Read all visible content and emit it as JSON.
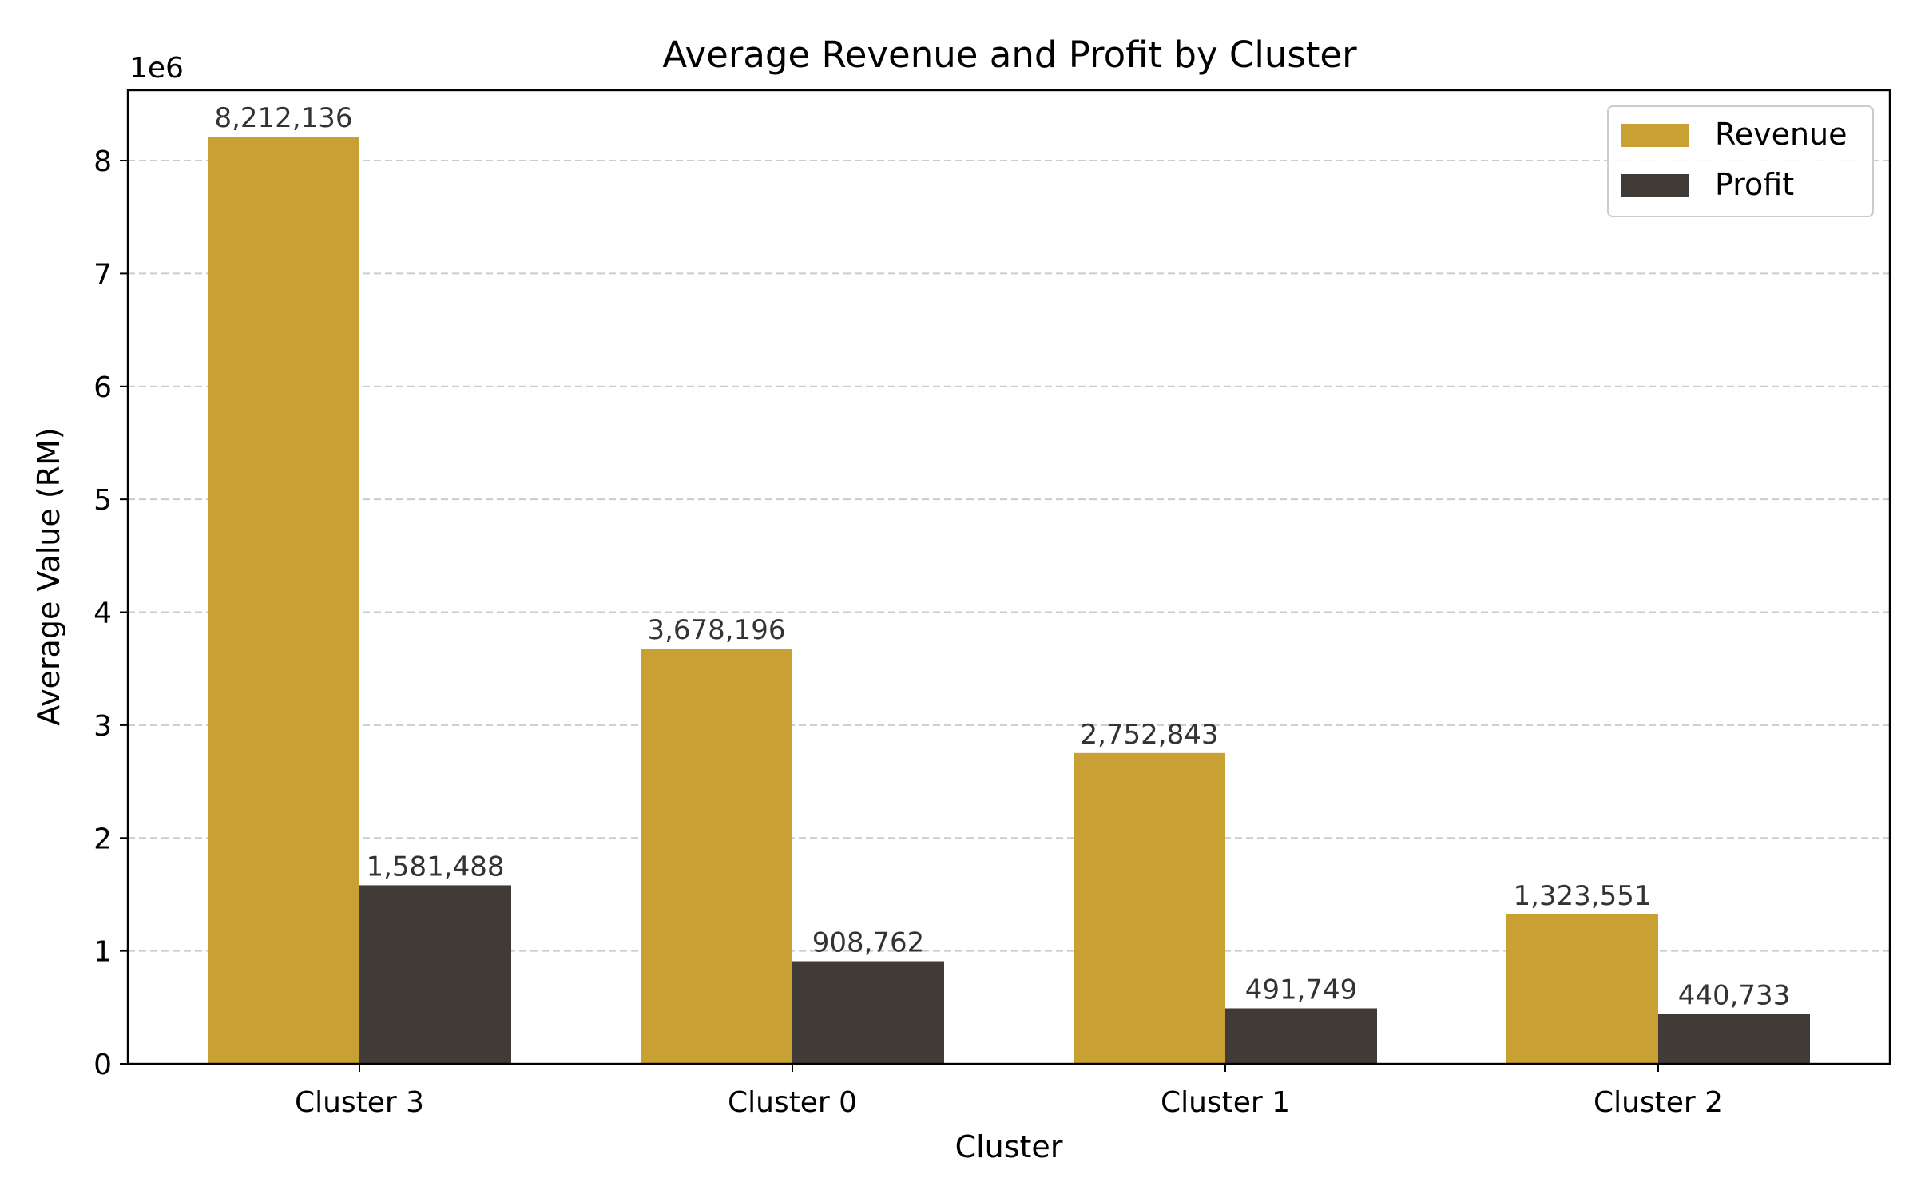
{
  "chart_data": {
    "type": "bar",
    "title": "Average Revenue and Profit by Cluster",
    "xlabel": "Cluster",
    "ylabel": "Average Value (RM)",
    "offset_label": "1e6",
    "categories": [
      "Cluster 3",
      "Cluster 0",
      "Cluster 1",
      "Cluster 2"
    ],
    "series": [
      {
        "name": "Revenue",
        "color": "#c9a033",
        "values": [
          8212136,
          3678196,
          2752843,
          1323551
        ],
        "labels": [
          "8,212,136",
          "3,678,196",
          "2,752,843",
          "1,323,551"
        ]
      },
      {
        "name": "Profit",
        "color": "#403b37",
        "values": [
          1581488,
          908762,
          491749,
          440733
        ],
        "labels": [
          "1,581,488",
          "908,762",
          "491,749",
          "440,733"
        ]
      }
    ],
    "ylim": [
      0,
      8622743
    ],
    "yticks": [
      0,
      1000000,
      2000000,
      3000000,
      4000000,
      5000000,
      6000000,
      7000000,
      8000000
    ],
    "ytick_labels": [
      "0",
      "1",
      "2",
      "3",
      "4",
      "5",
      "6",
      "7",
      "8"
    ],
    "grid": "y-dashed",
    "legend_position": "top-right"
  }
}
